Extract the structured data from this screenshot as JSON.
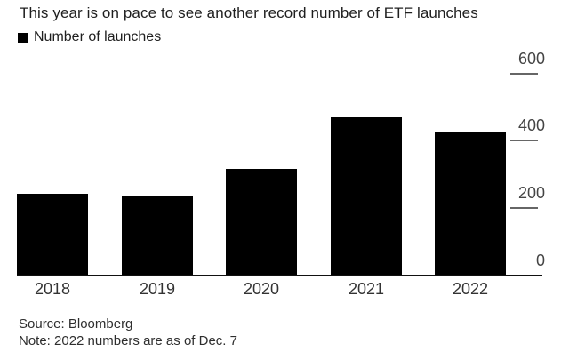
{
  "legend": {
    "label": "Number of launches",
    "swatch_color": "#000000"
  },
  "chart_data": {
    "type": "bar",
    "title": "This year is on pace to see another record number of ETF launches",
    "series_name": "Number of launches",
    "categories": [
      "2018",
      "2019",
      "2020",
      "2021",
      "2022"
    ],
    "values": [
      243,
      238,
      317,
      470,
      425
    ],
    "xlabel": "",
    "ylabel": "",
    "ylim": [
      0,
      600
    ],
    "yticks": [
      0,
      200,
      400,
      600
    ],
    "yaxis_side": "right",
    "grid": false,
    "legend_position": "top-left",
    "bar_color": "#000000"
  },
  "footer": {
    "source": "Source: Bloomberg",
    "note": "Note: 2022 numbers are as of Dec. 7"
  },
  "colors": {
    "background": "#ffffff",
    "bar": "#000000",
    "axis_line": "#111111",
    "tick_mark": "#666666",
    "title_text": "#1f1f1f",
    "tick_label_text": "#444444",
    "footer_text": "#2e2e2e"
  }
}
